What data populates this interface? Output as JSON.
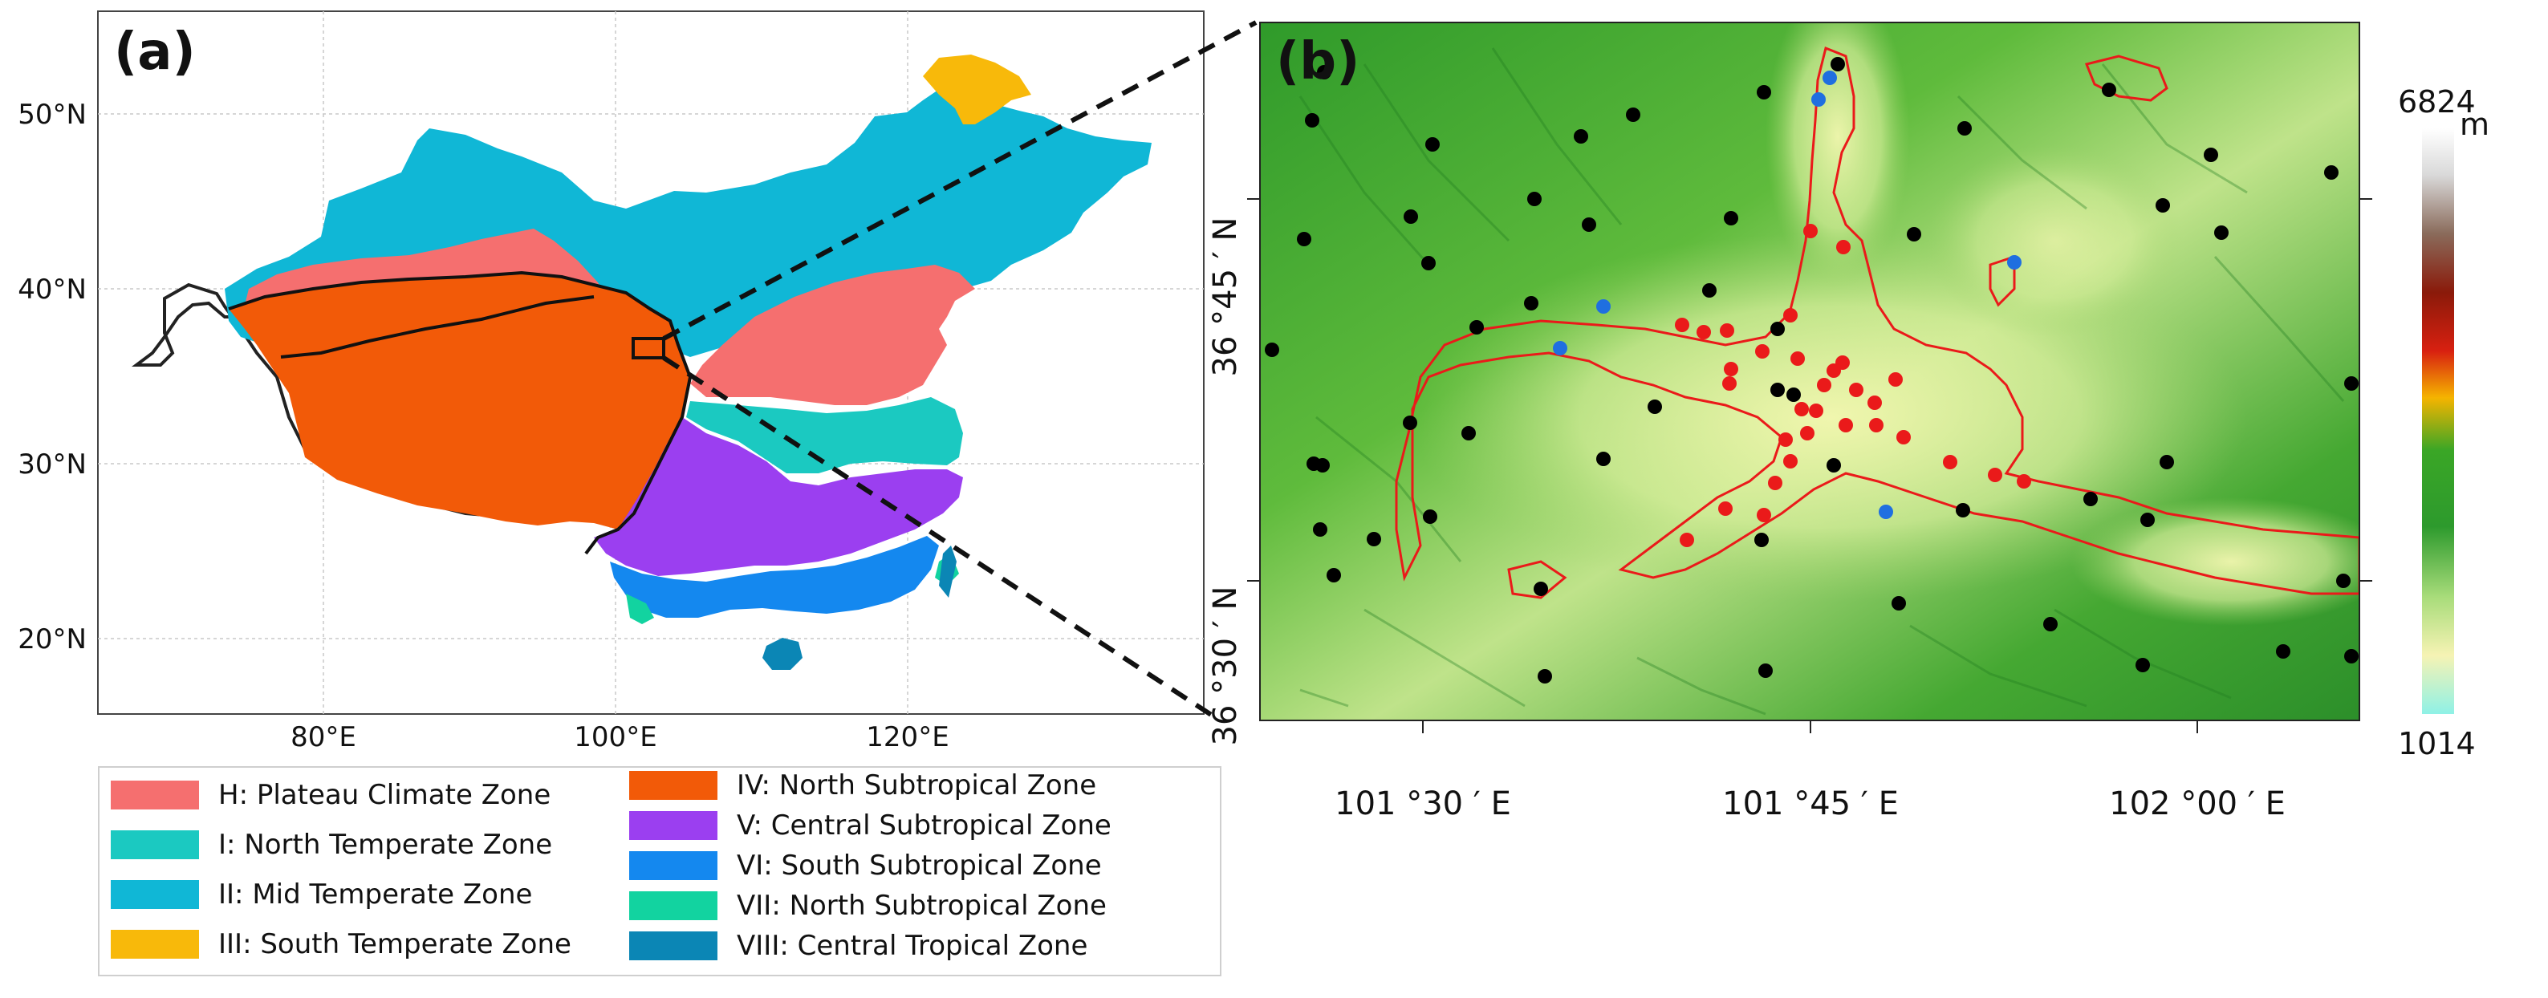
{
  "panel_a": {
    "label": "(a)",
    "lat_ticks": [
      "50°N",
      "40°N",
      "30°N",
      "20°N"
    ],
    "lon_ticks": [
      "80°E",
      "100°E",
      "120°E"
    ],
    "zones": [
      {
        "key": "H",
        "label": "H: Plateau Climate Zone",
        "color": "#f56f6f"
      },
      {
        "key": "I",
        "label": "I: North Temperate Zone",
        "color": "#1bc9c1"
      },
      {
        "key": "II",
        "label": "II: Mid Temperate Zone",
        "color": "#10b7d6"
      },
      {
        "key": "III",
        "label": "III: South Temperate Zone",
        "color": "#f8b90a"
      },
      {
        "key": "IV",
        "label": "IV: North Subtropical Zone",
        "color": "#f25a08"
      },
      {
        "key": "V",
        "label": "V: Central Subtropical Zone",
        "color": "#9b3ff0"
      },
      {
        "key": "VI",
        "label": "VI: South Subtropical Zone",
        "color": "#1488ef"
      },
      {
        "key": "VII",
        "label": "VII: North Subtropical Zone",
        "color": "#12d3a0"
      },
      {
        "key": "VIII",
        "label": "VIII: Central Tropical Zone",
        "color": "#0b86b5"
      }
    ]
  },
  "panel_b": {
    "label": "(b)",
    "lon_ticks": [
      "101 °30 ′ E",
      "101 °45 ′ E",
      "102 °00 ′ E"
    ],
    "lat_ticks": [
      "36 °45 ′ N",
      "36 °30 ′ N"
    ],
    "colorbar": {
      "max": "6824",
      "min": "1014",
      "unit": "m"
    },
    "station_colors": {
      "black": "#000000",
      "red": "#ea1a1a",
      "blue": "#1f6fe0"
    }
  }
}
